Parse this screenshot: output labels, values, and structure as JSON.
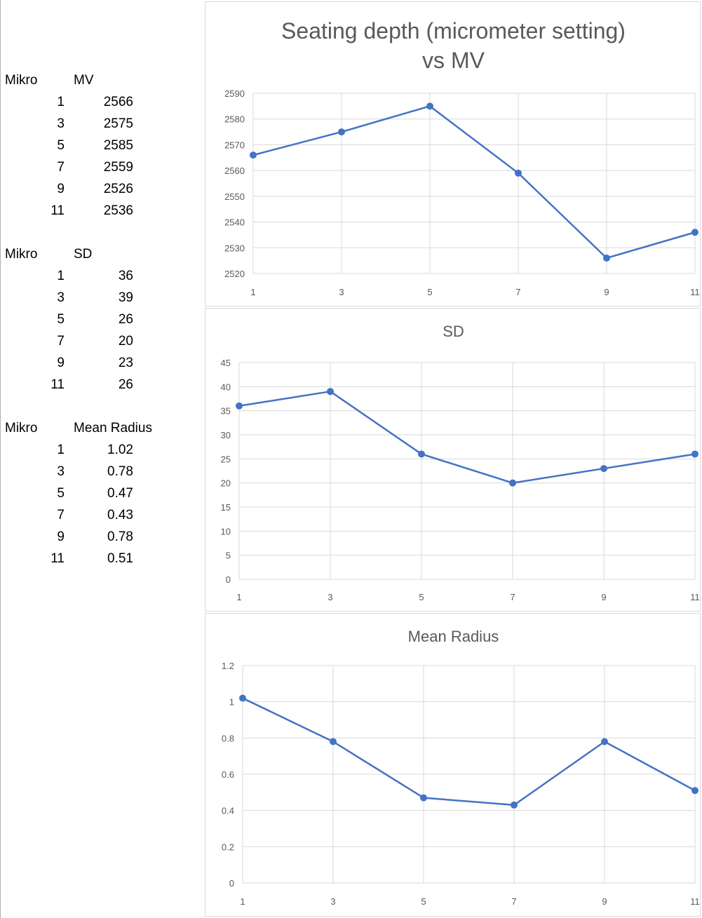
{
  "tables": [
    {
      "col1": "Mikro",
      "col2": "MV",
      "rows": [
        [
          "1",
          "2566"
        ],
        [
          "3",
          "2575"
        ],
        [
          "5",
          "2585"
        ],
        [
          "7",
          "2559"
        ],
        [
          "9",
          "2526"
        ],
        [
          "11",
          "2536"
        ]
      ]
    },
    {
      "col1": "Mikro",
      "col2": "SD",
      "rows": [
        [
          "1",
          "36"
        ],
        [
          "3",
          "39"
        ],
        [
          "5",
          "26"
        ],
        [
          "7",
          "20"
        ],
        [
          "9",
          "23"
        ],
        [
          "11",
          "26"
        ]
      ]
    },
    {
      "col1": "Mikro",
      "col2": "Mean Radius",
      "rows": [
        [
          "1",
          "1.02"
        ],
        [
          "3",
          "0.78"
        ],
        [
          "5",
          "0.47"
        ],
        [
          "7",
          "0.43"
        ],
        [
          "9",
          "0.78"
        ],
        [
          "11",
          "0.51"
        ]
      ]
    }
  ],
  "chart_data": [
    {
      "type": "line",
      "title_lines": [
        "Seating depth (micrometer setting)",
        "vs MV"
      ],
      "categories": [
        "1",
        "3",
        "5",
        "7",
        "9",
        "11"
      ],
      "values": [
        2566,
        2575,
        2585,
        2559,
        2526,
        2536
      ],
      "ylim": [
        2520,
        2590
      ],
      "yticks": [
        2520,
        2530,
        2540,
        2550,
        2560,
        2570,
        2580,
        2590
      ],
      "ytick_labels": [
        "2520",
        "2530",
        "2540",
        "2550",
        "2560",
        "2570",
        "2580",
        "2590"
      ],
      "grid": true,
      "color": "#4472C4"
    },
    {
      "type": "line",
      "title_lines": [
        "SD"
      ],
      "categories": [
        "1",
        "3",
        "5",
        "7",
        "9",
        "11"
      ],
      "values": [
        36,
        39,
        26,
        20,
        23,
        26
      ],
      "ylim": [
        0,
        45
      ],
      "yticks": [
        0,
        5,
        10,
        15,
        20,
        25,
        30,
        35,
        40,
        45
      ],
      "ytick_labels": [
        "0",
        "5",
        "10",
        "15",
        "20",
        "25",
        "30",
        "35",
        "40",
        "45"
      ],
      "grid": true,
      "color": "#4472C4"
    },
    {
      "type": "line",
      "title_lines": [
        "Mean Radius"
      ],
      "categories": [
        "1",
        "3",
        "5",
        "7",
        "9",
        "11"
      ],
      "values": [
        1.02,
        0.78,
        0.47,
        0.43,
        0.78,
        0.51
      ],
      "ylim": [
        0,
        1.2
      ],
      "yticks": [
        0,
        0.2,
        0.4,
        0.6,
        0.8,
        1,
        1.2
      ],
      "ytick_labels": [
        "0",
        "0.2",
        "0.4",
        "0.6",
        "0.8",
        "1",
        "1.2"
      ],
      "grid": true,
      "color": "#4472C4"
    }
  ]
}
